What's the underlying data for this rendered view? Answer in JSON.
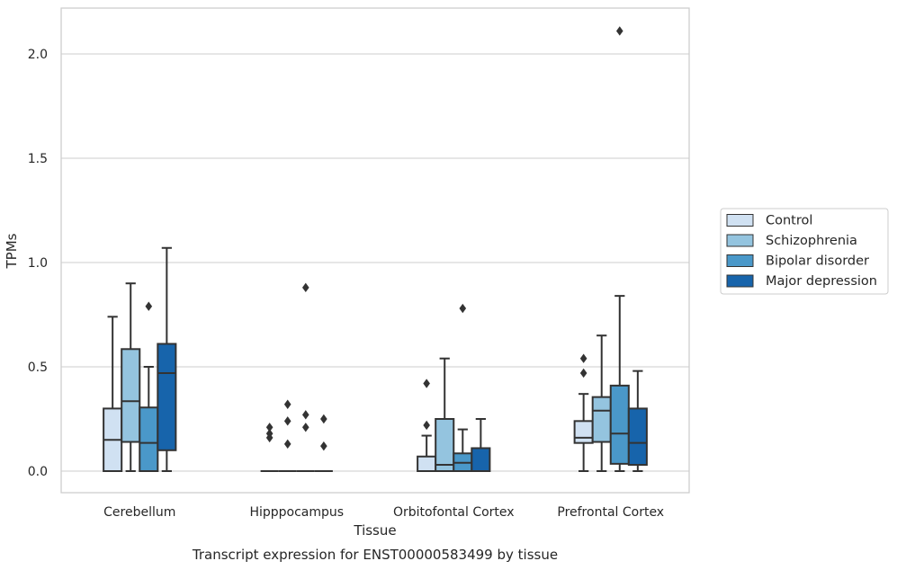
{
  "chart_data": {
    "type": "boxplot",
    "title": "Transcript expression for ENST00000583499 by tissue",
    "xlabel": "Tissue",
    "ylabel": "TPMs",
    "ylim": [
      -0.1,
      2.23
    ],
    "yticks": [
      0.0,
      0.5,
      1.0,
      1.5,
      2.0
    ],
    "ytick_labels": [
      "0.0",
      "0.5",
      "1.0",
      "1.5",
      "2.0"
    ],
    "grid": "horizontal",
    "legend_position": "right",
    "categories": [
      "Cerebellum",
      "Hipppocampus",
      "Orbitofontal Cortex",
      "Prefrontal Cortex"
    ],
    "series": [
      {
        "name": "Control",
        "color": "#d0e1f2",
        "boxes": [
          {
            "min": 0.0,
            "q1": 0.0,
            "median": 0.15,
            "q3": 0.3,
            "max": 0.74,
            "outliers": []
          },
          {
            "min": 0.0,
            "q1": 0.0,
            "median": 0.0,
            "q3": 0.0,
            "max": 0.0,
            "outliers": [
              0.16,
              0.18,
              0.21
            ]
          },
          {
            "min": 0.0,
            "q1": 0.0,
            "median": 0.0,
            "q3": 0.07,
            "max": 0.17,
            "outliers": [
              0.22,
              0.42
            ]
          },
          {
            "min": 0.0,
            "q1": 0.135,
            "median": 0.16,
            "q3": 0.24,
            "max": 0.37,
            "outliers": [
              0.47,
              0.54
            ]
          }
        ]
      },
      {
        "name": "Schizophrenia",
        "color": "#94c4df",
        "boxes": [
          {
            "min": 0.0,
            "q1": 0.14,
            "median": 0.335,
            "q3": 0.585,
            "max": 0.9,
            "outliers": []
          },
          {
            "min": 0.0,
            "q1": 0.0,
            "median": 0.0,
            "q3": 0.0,
            "max": 0.0,
            "outliers": [
              0.13,
              0.24,
              0.32
            ]
          },
          {
            "min": 0.0,
            "q1": 0.0,
            "median": 0.03,
            "q3": 0.25,
            "max": 0.54,
            "outliers": []
          },
          {
            "min": 0.0,
            "q1": 0.14,
            "median": 0.29,
            "q3": 0.355,
            "max": 0.65,
            "outliers": []
          }
        ]
      },
      {
        "name": "Bipolar disorder",
        "color": "#4a98c9",
        "boxes": [
          {
            "min": 0.0,
            "q1": 0.0,
            "median": 0.135,
            "q3": 0.305,
            "max": 0.5,
            "outliers": [
              0.79
            ]
          },
          {
            "min": 0.0,
            "q1": 0.0,
            "median": 0.0,
            "q3": 0.0,
            "max": 0.0,
            "outliers": [
              0.21,
              0.27,
              0.88
            ]
          },
          {
            "min": 0.0,
            "q1": 0.0,
            "median": 0.04,
            "q3": 0.085,
            "max": 0.2,
            "outliers": [
              0.78
            ]
          },
          {
            "min": 0.0,
            "q1": 0.035,
            "median": 0.18,
            "q3": 0.41,
            "max": 0.84,
            "outliers": [
              2.11
            ]
          }
        ]
      },
      {
        "name": "Major depression",
        "color": "#1764ab",
        "boxes": [
          {
            "min": 0.0,
            "q1": 0.1,
            "median": 0.47,
            "q3": 0.61,
            "max": 1.07,
            "outliers": []
          },
          {
            "min": 0.0,
            "q1": 0.0,
            "median": 0.0,
            "q3": 0.0,
            "max": 0.0,
            "outliers": [
              0.12,
              0.25
            ]
          },
          {
            "min": 0.0,
            "q1": 0.0,
            "median": 0.0,
            "q3": 0.11,
            "max": 0.25,
            "outliers": []
          },
          {
            "min": 0.0,
            "q1": 0.03,
            "median": 0.135,
            "q3": 0.3,
            "max": 0.48,
            "outliers": []
          }
        ]
      }
    ]
  }
}
